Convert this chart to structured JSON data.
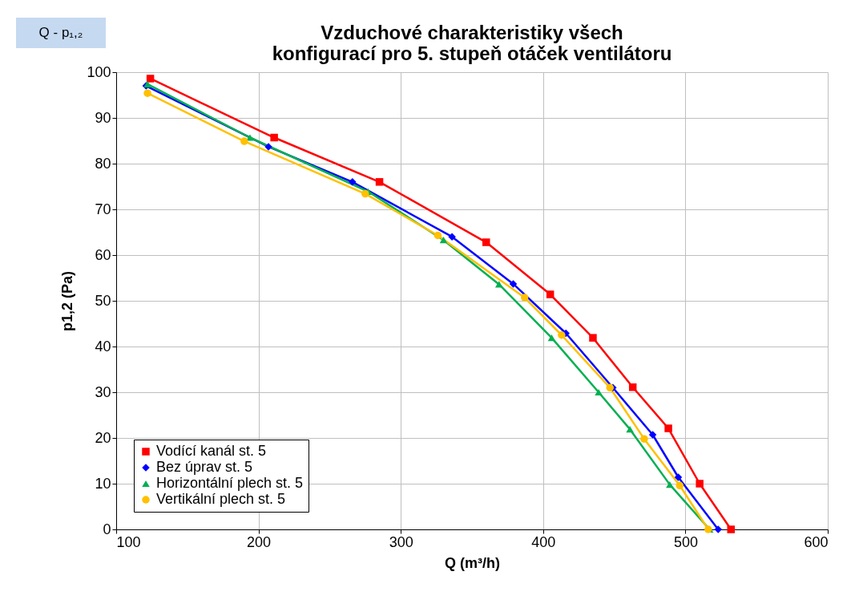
{
  "chart_data": {
    "type": "line",
    "title": "Vzduchové charakteristiky všech\nkonfigurací pro 5. stupeň otáček ventilátoru",
    "xlabel": "Q (m³/h)",
    "ylabel": "p1,2 (Pa)",
    "annotations": [
      "Q - p₁,₂"
    ],
    "xlim": [
      100,
      600
    ],
    "xticks": [
      100,
      200,
      300,
      400,
      500,
      600
    ],
    "ylim": [
      0,
      100
    ],
    "yticks": [
      0,
      10,
      20,
      30,
      40,
      50,
      60,
      70,
      80,
      90,
      100
    ],
    "grid": true,
    "legend": "bottom left",
    "series": [
      {
        "name": "Vodící kanál st. 5",
        "color": "#ff0000",
        "marker": "square",
        "x": [
          124,
          211,
          285,
          360,
          405,
          435,
          463,
          488,
          510,
          532
        ],
        "values": [
          98.6,
          85.7,
          76.0,
          62.8,
          51.4,
          41.9,
          31.1,
          22.1,
          10.0,
          0
        ]
      },
      {
        "name": "Bez úprav st. 5",
        "color": "#0000ff",
        "marker": "diamond",
        "x": [
          121,
          207,
          266,
          336,
          379,
          416,
          449,
          477,
          495,
          523
        ],
        "values": [
          97.0,
          83.7,
          76.0,
          64.0,
          53.7,
          42.9,
          31.0,
          20.7,
          11.4,
          0
        ]
      },
      {
        "name": "Horizontální plech st. 5",
        "color": "#00b050",
        "marker": "triangle",
        "x": [
          122,
          194,
          277,
          330,
          369,
          406,
          439,
          461,
          489,
          517
        ],
        "values": [
          97.4,
          85.7,
          73.9,
          63.3,
          53.6,
          41.9,
          30.0,
          21.9,
          9.8,
          0
        ]
      },
      {
        "name": "Vertikální plech st. 5",
        "color": "#ffc000",
        "marker": "circle",
        "x": [
          122,
          190,
          275,
          326,
          387,
          413,
          447,
          471,
          496,
          516
        ],
        "values": [
          95.4,
          84.9,
          73.4,
          64.3,
          50.7,
          42.5,
          31.0,
          19.8,
          9.6,
          0
        ]
      }
    ]
  }
}
